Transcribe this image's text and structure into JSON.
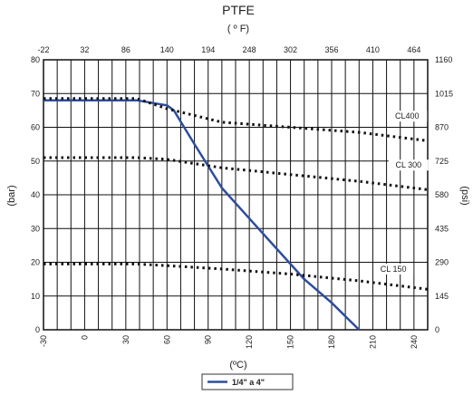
{
  "chart_data": {
    "type": "line",
    "title": "PTFE",
    "top_axis_label": "( º F)",
    "xlabel": "(ºC)",
    "ylabel": "(bar)",
    "y2label": "(psi)",
    "xlim": [
      -30,
      250
    ],
    "ylim": [
      0,
      80
    ],
    "x_ticks": [
      -30,
      0,
      30,
      60,
      90,
      120,
      150,
      180,
      210,
      240
    ],
    "y_ticks": [
      0,
      10,
      20,
      30,
      40,
      50,
      60,
      70,
      80
    ],
    "top_ticks": [
      "-22",
      "32",
      "86",
      "140",
      "194",
      "248",
      "302",
      "356",
      "410",
      "464"
    ],
    "y2_ticks": [
      "0",
      "145",
      "290",
      "435",
      "580",
      "725",
      "870",
      "1015",
      "1160"
    ],
    "grid": true,
    "legend_position": "bottom-center",
    "series": [
      {
        "name": "1/4\" a 4\"",
        "color": "#2e4d9e",
        "style": "solid",
        "x": [
          -30,
          38,
          60,
          65,
          80,
          100,
          120,
          140,
          160,
          180,
          200
        ],
        "y": [
          68,
          68,
          66.5,
          65,
          55,
          42,
          33,
          24,
          15,
          8,
          0
        ]
      },
      {
        "label": "CL400",
        "color": "#111111",
        "style": "dotted",
        "x": [
          -30,
          38,
          60,
          100,
          150,
          200,
          250
        ],
        "y": [
          68.5,
          68.5,
          65.5,
          61.5,
          60,
          58.5,
          56
        ]
      },
      {
        "label": "CL 300",
        "color": "#111111",
        "style": "dotted",
        "x": [
          -30,
          38,
          60,
          100,
          150,
          200,
          250
        ],
        "y": [
          51,
          51,
          50.5,
          48,
          46,
          44,
          41.5
        ]
      },
      {
        "label": "CL 150",
        "color": "#111111",
        "style": "dotted",
        "x": [
          -30,
          38,
          60,
          100,
          150,
          200,
          250
        ],
        "y": [
          19.5,
          19.5,
          19,
          18,
          16.5,
          14.5,
          12
        ]
      }
    ],
    "annotations": [
      "CL400",
      "CL 300",
      "CL 150"
    ]
  }
}
